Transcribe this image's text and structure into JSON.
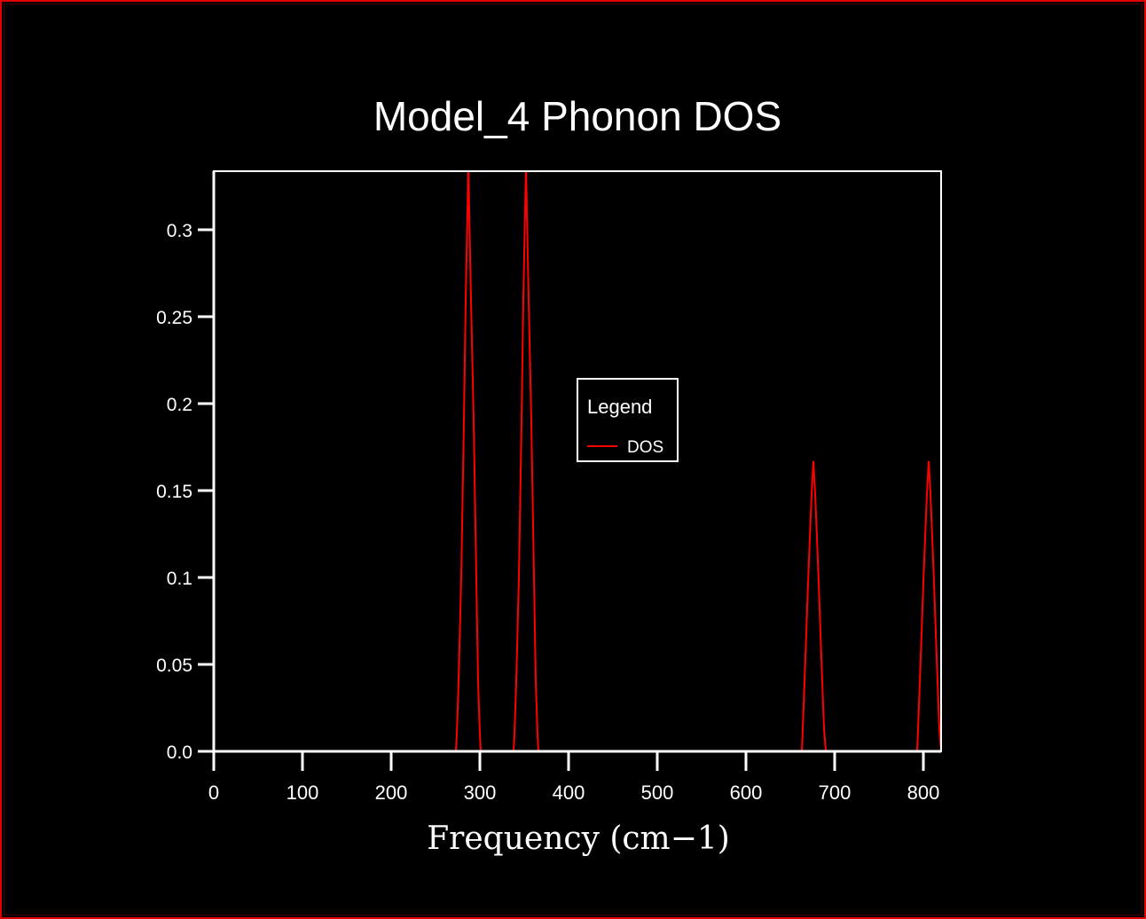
{
  "chart_data": {
    "type": "line",
    "title": "Model_4 Phonon DOS",
    "xlabel": "Frequency (cm−1)",
    "ylabel": "",
    "xlim": [
      0,
      820
    ],
    "ylim": [
      0,
      0.3337
    ],
    "xticks": [
      "0",
      "100",
      "200",
      "300",
      "400",
      "500",
      "600",
      "700",
      "800"
    ],
    "yticks": [
      "0.0",
      "0.05",
      "0.1",
      "0.15",
      "0.2",
      "0.25",
      "0.3"
    ],
    "grid": false,
    "legend": {
      "title": "Legend",
      "placement": "center",
      "entries": [
        "DOS"
      ]
    },
    "series": [
      {
        "name": "DOS",
        "color": "#ff0000",
        "x": [
          0,
          273,
          274,
          276,
          279,
          282,
          284,
          286,
          287,
          288,
          290,
          293,
          296,
          298,
          300,
          301,
          338,
          339,
          341,
          344,
          347,
          349,
          351,
          352,
          353,
          355,
          358,
          361,
          363,
          365,
          366,
          663,
          664,
          666,
          668,
          670,
          672,
          674,
          676,
          678,
          680,
          682,
          684,
          686,
          688,
          690,
          691,
          793,
          794,
          796,
          798,
          800,
          802,
          804,
          806,
          808,
          810,
          812,
          814,
          816,
          818,
          820
        ],
        "y": [
          0,
          0,
          0.01,
          0.04,
          0.1,
          0.19,
          0.26,
          0.31,
          0.34,
          0.31,
          0.26,
          0.19,
          0.1,
          0.04,
          0.01,
          0,
          0,
          0.01,
          0.04,
          0.1,
          0.19,
          0.26,
          0.31,
          0.34,
          0.31,
          0.26,
          0.19,
          0.1,
          0.04,
          0.01,
          0,
          0,
          0.013,
          0.04,
          0.068,
          0.097,
          0.123,
          0.148,
          0.167,
          0.148,
          0.123,
          0.097,
          0.068,
          0.04,
          0.013,
          0,
          0,
          0,
          0.013,
          0.04,
          0.068,
          0.097,
          0.123,
          0.148,
          0.167,
          0.148,
          0.123,
          0.097,
          0.068,
          0.04,
          0.013,
          0
        ]
      }
    ]
  }
}
